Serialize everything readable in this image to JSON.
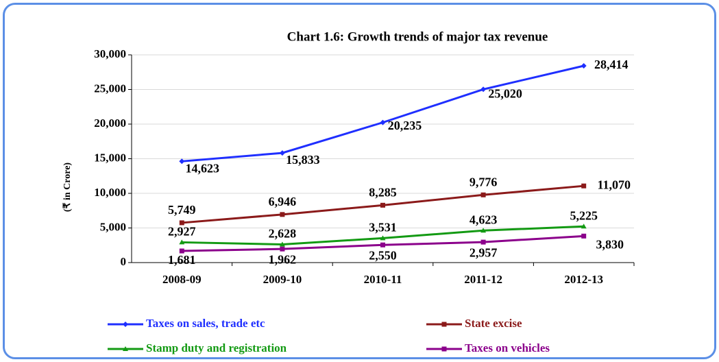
{
  "chart_data": {
    "type": "line",
    "title": "Chart 1.6: Growth trends  of major tax revenue",
    "y_label": "(₹ in Crore)",
    "categories": [
      "2008-09",
      "2009-10",
      "2010-11",
      "2011-12",
      "2012-13"
    ],
    "series": [
      {
        "name": "Taxes on sales, trade etc",
        "color": "#1f2fff",
        "marker": "diamond",
        "values": [
          14623,
          15833,
          20235,
          25020,
          28414
        ],
        "value_labels": [
          "14,623",
          "15,833",
          "20,235",
          "25,020",
          "28,414"
        ]
      },
      {
        "name": "State excise",
        "color": "#8b1a1a",
        "marker": "square",
        "values": [
          5749,
          6946,
          8285,
          9776,
          11070
        ],
        "value_labels": [
          "5,749",
          "6,946",
          "8,285",
          "9,776",
          "11,070"
        ]
      },
      {
        "name": "Stamp duty and registration",
        "color": "#139a13",
        "marker": "triangle",
        "values": [
          2927,
          2628,
          3531,
          4623,
          5225
        ],
        "value_labels": [
          "2,927",
          "2,628",
          "3,531",
          "4,623",
          "5,225"
        ]
      },
      {
        "name": "Taxes on vehicles",
        "color": "#8b008b",
        "marker": "square",
        "values": [
          1681,
          1962,
          2550,
          2957,
          3830
        ],
        "value_labels": [
          "1,681",
          "1,962",
          "2,550",
          "2,957",
          "3,830"
        ]
      }
    ],
    "ylim": [
      0,
      30000
    ],
    "yticks": [
      0,
      {
        "value": 5000,
        "label": "5,000"
      },
      {
        "value": 10000,
        "label": "10,000"
      },
      {
        "value": 15000,
        "label": "15,000"
      },
      {
        "value": 20000,
        "label": "20,000"
      },
      {
        "value": 25000,
        "label": "25,000"
      },
      {
        "value": 30000,
        "label": "30,000"
      }
    ],
    "grid": true
  }
}
